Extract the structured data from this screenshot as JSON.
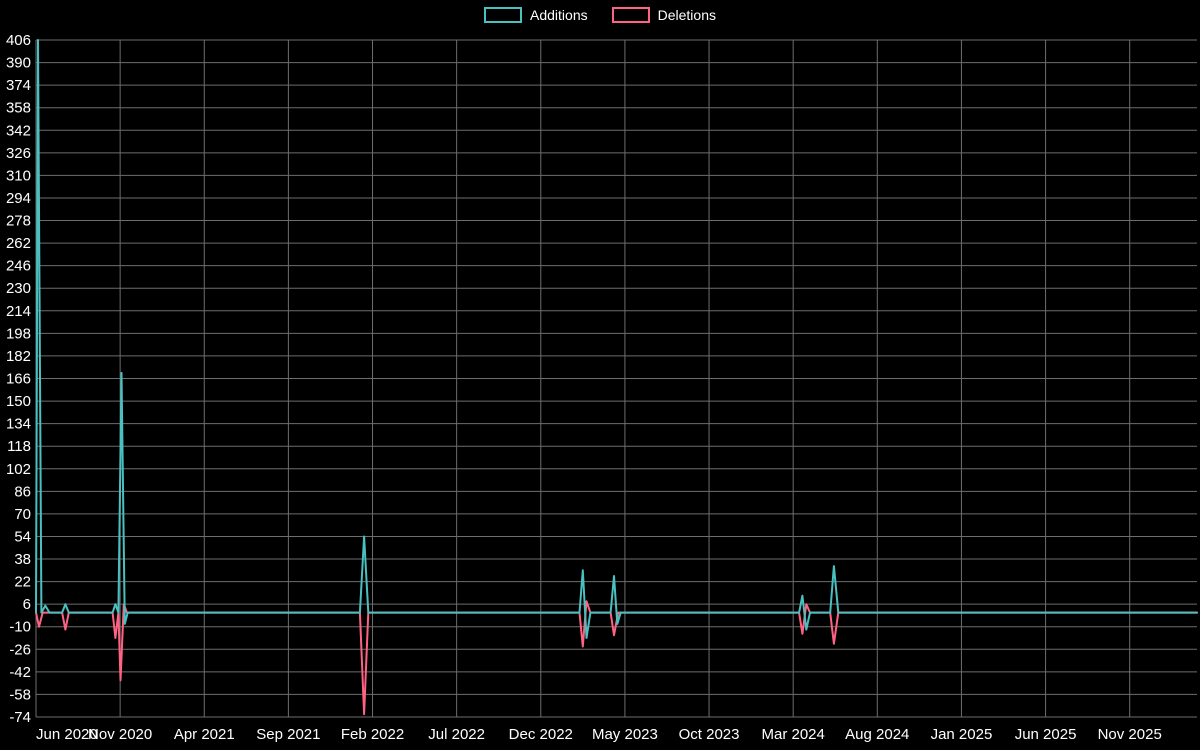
{
  "legend": {
    "items": [
      {
        "label": "Additions",
        "color": "#4bc0c0"
      },
      {
        "label": "Deletions",
        "color": "#ff6384"
      }
    ]
  },
  "chart_data": {
    "type": "line",
    "title": "",
    "background": "#000000",
    "text_color": "#ffffff",
    "grid": {
      "shown": true,
      "color": "#6e6e6e"
    },
    "legend_position": "top-center",
    "x_axis": {
      "tick_labels": [
        "Jun 2020",
        "Nov 2020",
        "Apr 2021",
        "Sep 2021",
        "Feb 2022",
        "Jul 2022",
        "Dec 2022",
        "May 2023",
        "Oct 2023",
        "Mar 2024",
        "Aug 2024",
        "Jan 2025",
        "Jun 2025",
        "Nov 2025"
      ],
      "tick_months": [
        0,
        5,
        10,
        15,
        20,
        25,
        30,
        35,
        40,
        45,
        50,
        55,
        60,
        65
      ],
      "domain_months": [
        0,
        69
      ]
    },
    "y_axis": {
      "min": -74,
      "max": 406,
      "step": 16,
      "ticks": [
        406,
        390,
        374,
        358,
        342,
        326,
        310,
        294,
        278,
        262,
        246,
        230,
        214,
        198,
        182,
        166,
        150,
        134,
        118,
        102,
        86,
        70,
        54,
        38,
        22,
        6,
        -10,
        -26,
        -42,
        -58,
        -74
      ]
    },
    "series": [
      {
        "name": "Additions",
        "color": "#4bc0c0",
        "points": [
          [
            0,
            0
          ],
          [
            0.12,
            406
          ],
          [
            0.32,
            0
          ],
          [
            0.55,
            5
          ],
          [
            0.8,
            0
          ],
          [
            1.55,
            0
          ],
          [
            1.75,
            6
          ],
          [
            1.95,
            0
          ],
          [
            4.55,
            0
          ],
          [
            4.72,
            6
          ],
          [
            4.9,
            0
          ],
          [
            5.08,
            170
          ],
          [
            5.28,
            -8
          ],
          [
            5.45,
            0
          ],
          [
            19.25,
            0
          ],
          [
            19.5,
            54
          ],
          [
            19.75,
            0
          ],
          [
            32.3,
            0
          ],
          [
            32.5,
            30
          ],
          [
            32.72,
            -18
          ],
          [
            32.95,
            0
          ],
          [
            34.15,
            0
          ],
          [
            34.35,
            26
          ],
          [
            34.55,
            -8
          ],
          [
            34.75,
            0
          ],
          [
            45.35,
            0
          ],
          [
            45.55,
            12
          ],
          [
            45.78,
            -12
          ],
          [
            46,
            0
          ],
          [
            47.2,
            0
          ],
          [
            47.42,
            33
          ],
          [
            47.68,
            0
          ],
          [
            69,
            0
          ]
        ]
      },
      {
        "name": "Deletions",
        "color": "#ff6384",
        "points": [
          [
            0,
            0
          ],
          [
            0.18,
            -10
          ],
          [
            0.4,
            0
          ],
          [
            1.55,
            0
          ],
          [
            1.75,
            -12
          ],
          [
            1.95,
            0
          ],
          [
            4.55,
            0
          ],
          [
            4.72,
            -18
          ],
          [
            4.9,
            0
          ],
          [
            5.02,
            -48
          ],
          [
            5.22,
            6
          ],
          [
            5.4,
            0
          ],
          [
            19.25,
            0
          ],
          [
            19.5,
            -72
          ],
          [
            19.75,
            0
          ],
          [
            32.3,
            0
          ],
          [
            32.5,
            -24
          ],
          [
            32.72,
            8
          ],
          [
            32.95,
            0
          ],
          [
            34.15,
            0
          ],
          [
            34.35,
            -16
          ],
          [
            34.6,
            0
          ],
          [
            45.35,
            0
          ],
          [
            45.55,
            -15
          ],
          [
            45.78,
            6
          ],
          [
            46,
            0
          ],
          [
            47.2,
            0
          ],
          [
            47.42,
            -22
          ],
          [
            47.68,
            0
          ],
          [
            69,
            0
          ]
        ]
      }
    ]
  }
}
